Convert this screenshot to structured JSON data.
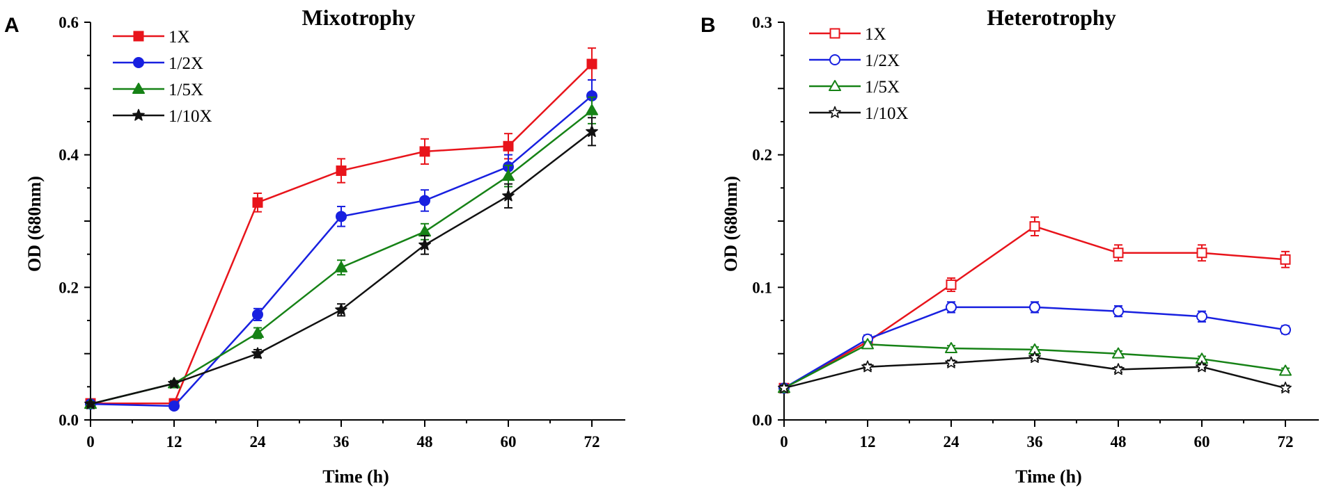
{
  "chart_data": [
    {
      "type": "line",
      "panel": "A",
      "title": "Mixotrophy",
      "xlabel": "Time (h)",
      "ylabel": "OD (680nm)",
      "x": [
        0,
        12,
        24,
        36,
        48,
        60,
        72
      ],
      "xticks": [
        "0",
        "12",
        "24",
        "36",
        "48",
        "60",
        "72"
      ],
      "xlim": [
        0,
        78
      ],
      "ylim": [
        0,
        0.6
      ],
      "yticks": [
        "0.0",
        "0.2",
        "0.4",
        "0.6"
      ],
      "legend_position": "top-left",
      "series": [
        {
          "name": "1X",
          "color": "#e8141b",
          "marker": "square",
          "filled": true,
          "values": [
            0.025,
            0.025,
            0.328,
            0.376,
            0.405,
            0.413,
            0.537
          ],
          "errors": [
            0.003,
            0.004,
            0.014,
            0.018,
            0.019,
            0.019,
            0.024
          ]
        },
        {
          "name": "1/2X",
          "color": "#1820e0",
          "marker": "circle",
          "filled": true,
          "values": [
            0.024,
            0.021,
            0.159,
            0.307,
            0.331,
            0.382,
            0.489
          ],
          "errors": [
            0.003,
            0.003,
            0.009,
            0.015,
            0.016,
            0.018,
            0.024
          ]
        },
        {
          "name": "1/5X",
          "color": "#168216",
          "marker": "triangle",
          "filled": true,
          "values": [
            0.024,
            0.055,
            0.131,
            0.23,
            0.284,
            0.368,
            0.467
          ],
          "errors": [
            0.003,
            0.004,
            0.008,
            0.011,
            0.012,
            0.016,
            0.02
          ]
        },
        {
          "name": "1/10X",
          "color": "#111111",
          "marker": "star",
          "filled": true,
          "values": [
            0.024,
            0.055,
            0.1,
            0.166,
            0.264,
            0.338,
            0.435
          ],
          "errors": [
            0.003,
            0.004,
            0.006,
            0.009,
            0.014,
            0.018,
            0.021
          ]
        }
      ]
    },
    {
      "type": "line",
      "panel": "B",
      "title": "Heterotrophy",
      "xlabel": "Time (h)",
      "ylabel": "OD (680nm)",
      "x": [
        0,
        12,
        24,
        36,
        48,
        60,
        72
      ],
      "xticks": [
        "0",
        "12",
        "24",
        "36",
        "48",
        "60",
        "72"
      ],
      "xlim": [
        0,
        78
      ],
      "ylim": [
        0,
        0.3
      ],
      "yticks": [
        "0.0",
        "0.1",
        "0.2",
        "0.3"
      ],
      "legend_position": "top-left",
      "series": [
        {
          "name": "1X",
          "color": "#e8141b",
          "marker": "square",
          "filled": false,
          "values": [
            0.024,
            0.059,
            0.102,
            0.146,
            0.126,
            0.126,
            0.121
          ],
          "errors": [
            0.002,
            0.003,
            0.005,
            0.007,
            0.006,
            0.006,
            0.006
          ]
        },
        {
          "name": "1/2X",
          "color": "#1820e0",
          "marker": "circle",
          "filled": false,
          "values": [
            0.024,
            0.061,
            0.085,
            0.085,
            0.082,
            0.078,
            0.068
          ],
          "errors": [
            0.002,
            0.003,
            0.004,
            0.004,
            0.004,
            0.004,
            0.003
          ]
        },
        {
          "name": "1/5X",
          "color": "#168216",
          "marker": "triangle",
          "filled": false,
          "values": [
            0.024,
            0.057,
            0.054,
            0.053,
            0.05,
            0.046,
            0.037
          ],
          "errors": [
            0.002,
            0.002,
            0.002,
            0.002,
            0.002,
            0.002,
            0.002
          ]
        },
        {
          "name": "1/10X",
          "color": "#111111",
          "marker": "star",
          "filled": false,
          "values": [
            0.024,
            0.04,
            0.043,
            0.047,
            0.038,
            0.04,
            0.024
          ],
          "errors": [
            0.002,
            0.002,
            0.002,
            0.002,
            0.002,
            0.002,
            0.002
          ]
        }
      ]
    }
  ]
}
